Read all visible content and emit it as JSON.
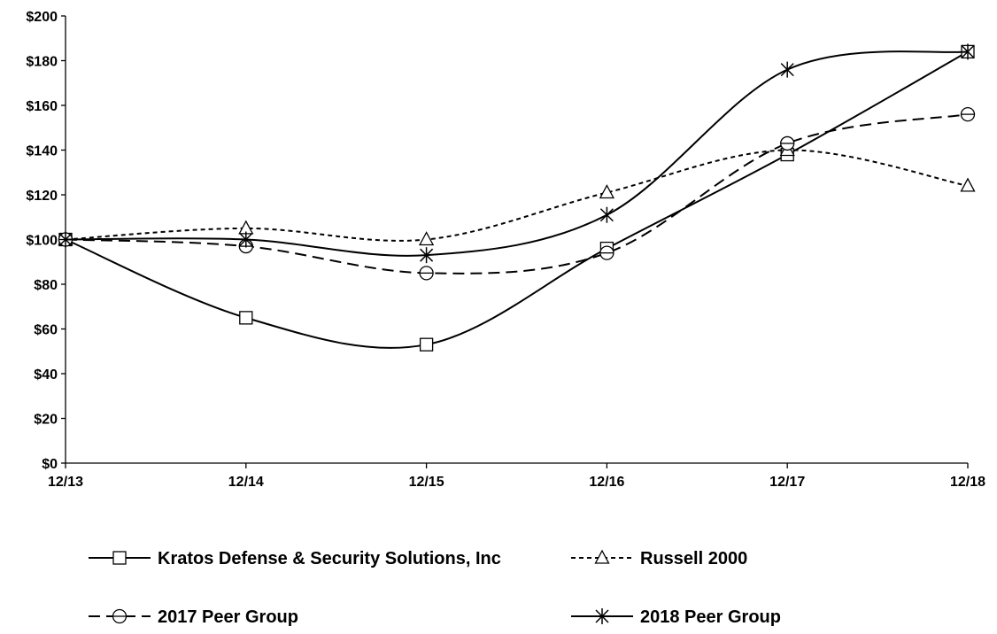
{
  "chart_data": {
    "type": "line",
    "title": "",
    "xlabel": "",
    "ylabel": "",
    "categories": [
      "12/13",
      "12/14",
      "12/15",
      "12/16",
      "12/17",
      "12/18"
    ],
    "ylim": [
      0,
      200
    ],
    "yticks": [
      0,
      20,
      40,
      60,
      80,
      100,
      120,
      140,
      160,
      180,
      200
    ],
    "ytick_labels": [
      "$0",
      "$20",
      "$40",
      "$60",
      "$80",
      "$100",
      "$120",
      "$140",
      "$160",
      "$180",
      "$200"
    ],
    "grid": false,
    "legend_position": "bottom",
    "series": [
      {
        "name": "Kratos Defense & Security Solutions, Inc",
        "marker": "square",
        "dash": "solid",
        "color": "#000000",
        "values": [
          100,
          65,
          53,
          96,
          138,
          184
        ]
      },
      {
        "name": "Russell 2000",
        "marker": "triangle",
        "dash": "short-dash",
        "color": "#000000",
        "values": [
          100,
          105,
          100,
          121,
          140,
          124
        ]
      },
      {
        "name": "2017 Peer Group",
        "marker": "circle",
        "dash": "long-dash",
        "color": "#000000",
        "values": [
          100,
          97,
          85,
          94,
          143,
          156
        ]
      },
      {
        "name": "2018 Peer Group",
        "marker": "star",
        "dash": "solid",
        "color": "#000000",
        "values": [
          100,
          100,
          93,
          111,
          176,
          184
        ]
      }
    ]
  }
}
